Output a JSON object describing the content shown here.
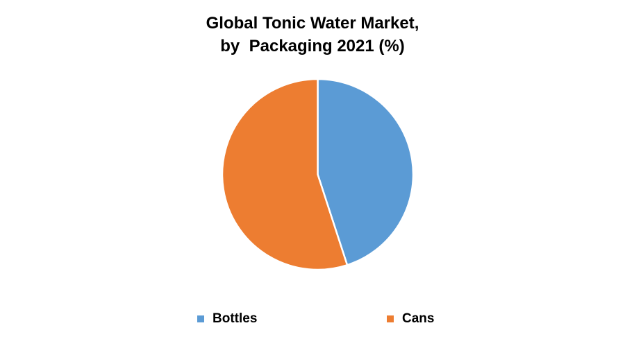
{
  "title": {
    "line1": "Global Tonic Water Market,",
    "line2": "by  Packaging 2021 (%)"
  },
  "legend": [
    {
      "label": "Bottles",
      "color": "#5B9BD5"
    },
    {
      "label": "Cans",
      "color": "#ED7D31"
    }
  ],
  "chart_data": {
    "type": "pie",
    "title": "Global Tonic Water Market, by Packaging 2021 (%)",
    "categories": [
      "Bottles",
      "Cans"
    ],
    "values": [
      45,
      55
    ],
    "colors": [
      "#5B9BD5",
      "#ED7D31"
    ],
    "start_angle_deg": 0,
    "direction": "clockwise",
    "legend_position": "bottom",
    "data_labels": false
  }
}
